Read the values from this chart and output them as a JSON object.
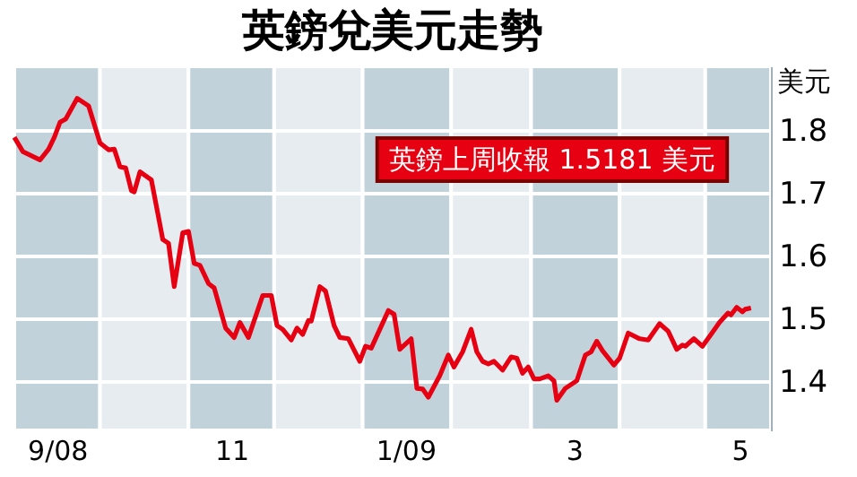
{
  "chart_data": {
    "type": "line",
    "title": "英鎊兌美元走勢",
    "ylabel": "美元",
    "annotations": [
      "英鎊上周收報 1.5181 美元"
    ],
    "x": [
      "2008-09-01",
      "2008-09-04",
      "2008-09-10",
      "2008-09-13",
      "2008-09-15",
      "2008-09-17",
      "2008-09-19",
      "2008-09-23",
      "2008-09-27",
      "2008-10-01",
      "2008-10-04",
      "2008-10-06",
      "2008-10-08",
      "2008-10-10",
      "2008-10-12",
      "2008-10-13",
      "2008-10-15",
      "2008-10-19",
      "2008-10-23",
      "2008-10-25",
      "2008-10-27",
      "2008-10-30",
      "2008-11-01",
      "2008-11-03",
      "2008-11-05",
      "2008-11-08",
      "2008-11-10",
      "2008-11-14",
      "2008-11-17",
      "2008-11-19",
      "2008-11-22",
      "2008-11-27",
      "2008-11-30",
      "2008-12-02",
      "2008-12-04",
      "2008-12-07",
      "2008-12-09",
      "2008-12-11",
      "2008-12-13",
      "2008-12-14",
      "2008-12-17",
      "2008-12-19",
      "2008-12-22",
      "2008-12-24",
      "2008-12-27",
      "2008-12-31",
      "2009-01-02",
      "2009-01-04",
      "2009-01-10",
      "2009-01-12",
      "2009-01-14",
      "2009-01-18",
      "2009-01-20",
      "2009-01-22",
      "2009-01-24",
      "2009-01-28",
      "2009-01-31",
      "2009-02-02",
      "2009-02-05",
      "2009-02-08",
      "2009-02-10",
      "2009-02-12",
      "2009-02-14",
      "2009-02-16",
      "2009-02-19",
      "2009-02-22",
      "2009-02-24",
      "2009-02-26",
      "2009-02-28",
      "2009-03-02",
      "2009-03-04",
      "2009-03-07",
      "2009-03-09",
      "2009-03-10",
      "2009-03-13",
      "2009-03-17",
      "2009-03-20",
      "2009-03-22",
      "2009-03-24",
      "2009-03-26",
      "2009-03-30",
      "2009-04-01",
      "2009-04-04",
      "2009-04-08",
      "2009-04-11",
      "2009-04-15",
      "2009-04-18",
      "2009-04-21",
      "2009-04-23",
      "2009-04-24",
      "2009-04-27",
      "2009-04-30",
      "2009-05-03",
      "2009-05-06",
      "2009-05-09",
      "2009-05-10",
      "2009-05-12",
      "2009-05-14",
      "2009-05-15",
      "2009-05-17"
    ],
    "series": [
      {
        "color": "#e60012",
        "values": [
          1.79,
          1.767,
          1.754,
          1.771,
          1.79,
          1.814,
          1.819,
          1.852,
          1.84,
          1.781,
          1.77,
          1.771,
          1.743,
          1.741,
          1.705,
          1.703,
          1.735,
          1.722,
          1.627,
          1.621,
          1.552,
          1.638,
          1.64,
          1.589,
          1.586,
          1.557,
          1.55,
          1.486,
          1.471,
          1.495,
          1.471,
          1.538,
          1.538,
          1.49,
          1.484,
          1.467,
          1.486,
          1.476,
          1.498,
          1.497,
          1.552,
          1.545,
          1.49,
          1.471,
          1.469,
          1.433,
          1.457,
          1.454,
          1.514,
          1.508,
          1.452,
          1.469,
          1.39,
          1.389,
          1.376,
          1.41,
          1.443,
          1.424,
          1.448,
          1.484,
          1.448,
          1.433,
          1.429,
          1.433,
          1.419,
          1.44,
          1.438,
          1.414,
          1.424,
          1.405,
          1.405,
          1.41,
          1.402,
          1.371,
          1.39,
          1.402,
          1.443,
          1.448,
          1.465,
          1.45,
          1.427,
          1.438,
          1.478,
          1.469,
          1.467,
          1.493,
          1.481,
          1.452,
          1.459,
          1.457,
          1.469,
          1.457,
          1.476,
          1.495,
          1.51,
          1.507,
          1.519,
          1.512,
          1.516,
          1.518
        ]
      }
    ],
    "xlim": [
      "2008-09-01",
      "2009-05-24"
    ],
    "xticks": [
      {
        "value": "2008-09-16",
        "label": "9/08"
      },
      {
        "value": "2008-11-16",
        "label": "11"
      },
      {
        "value": "2009-01-16",
        "label": "1/09"
      },
      {
        "value": "2009-03-16",
        "label": "3"
      },
      {
        "value": "2009-05-13",
        "label": "5"
      }
    ],
    "ylim": [
      1.323,
      1.903
    ],
    "yticks": [
      1.4,
      1.5,
      1.6,
      1.7,
      1.8
    ],
    "grid": "y",
    "bands": [
      {
        "axis": "x",
        "from": "2008-09-01",
        "to": "2008-10-01",
        "color": "#c2d2da"
      },
      {
        "axis": "x",
        "from": "2008-10-01",
        "to": "2008-11-01",
        "color": "#e6ecf0"
      },
      {
        "axis": "x",
        "from": "2008-11-01",
        "to": "2008-12-01",
        "color": "#c2d2da"
      },
      {
        "axis": "x",
        "from": "2008-12-01",
        "to": "2009-01-01",
        "color": "#e6ecf0"
      },
      {
        "axis": "x",
        "from": "2009-01-01",
        "to": "2009-02-01",
        "color": "#c2d2da"
      },
      {
        "axis": "x",
        "from": "2009-02-01",
        "to": "2009-03-01",
        "color": "#e6ecf0"
      },
      {
        "axis": "x",
        "from": "2009-03-01",
        "to": "2009-04-01",
        "color": "#c2d2da"
      },
      {
        "axis": "x",
        "from": "2009-04-01",
        "to": "2009-05-01",
        "color": "#e6ecf0"
      },
      {
        "axis": "x",
        "from": "2009-05-01",
        "to": "2009-05-24",
        "color": "#c2d2da"
      }
    ]
  }
}
